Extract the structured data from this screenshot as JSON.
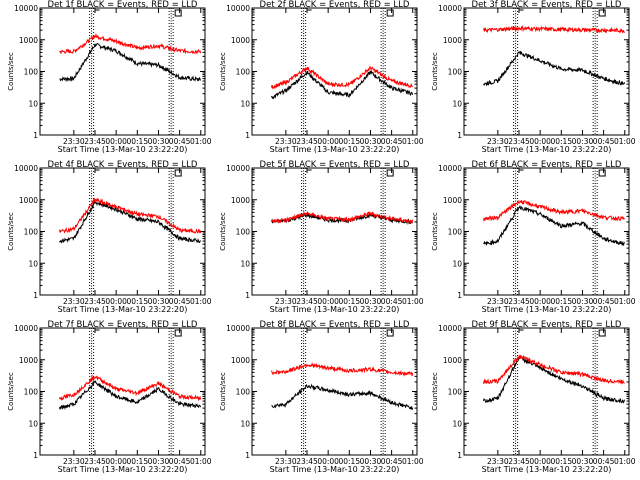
{
  "chart_data": [
    {
      "type": "line",
      "title": "Det 1f BLACK = Events, RED = LLD",
      "xlabel": "Start Time (13-Mar-10 23:22:20)",
      "ylabel": "Counts/sec",
      "xticks": [
        "23:30",
        "23:45",
        "00:00",
        "00:15",
        "00:30",
        "00:45",
        "01:00"
      ],
      "yticks": [
        "1",
        "10",
        "100",
        "1000",
        "10000"
      ],
      "yscale": "log",
      "ylim": [
        1,
        10000
      ],
      "x": [
        23.33,
        23.5,
        23.75,
        24.0,
        24.25,
        24.5,
        24.75,
        25.0
      ],
      "series": [
        {
          "name": "BLACK = Events",
          "color": "#000000",
          "values": [
            58,
            60,
            700,
            450,
            180,
            160,
            65,
            55
          ]
        },
        {
          "name": "RED = LLD",
          "color": "#ff0000",
          "values": [
            420,
            430,
            1300,
            900,
            550,
            650,
            450,
            420
          ]
        }
      ]
    },
    {
      "type": "line",
      "title": "Det 2f BLACK = Events, RED = LLD",
      "xlabel": "Start Time (13-Mar-10 23:22:20)",
      "ylabel": "Counts/sec",
      "xticks": [
        "23:30",
        "23:45",
        "00:00",
        "00:15",
        "00:30",
        "00:45",
        "01:00"
      ],
      "yticks": [
        "1",
        "10",
        "100",
        "1000",
        "10000"
      ],
      "yscale": "log",
      "ylim": [
        1,
        10000
      ],
      "x": [
        23.33,
        23.5,
        23.75,
        24.0,
        24.25,
        24.5,
        24.75,
        25.0
      ],
      "series": [
        {
          "name": "BLACK = Events",
          "color": "#000000",
          "values": [
            15,
            25,
            95,
            22,
            18,
            95,
            30,
            20
          ]
        },
        {
          "name": "RED = LLD",
          "color": "#ff0000",
          "values": [
            32,
            45,
            130,
            40,
            38,
            130,
            50,
            35
          ]
        }
      ]
    },
    {
      "type": "line",
      "title": "Det 3f BLACK = Events, RED = LLD",
      "xlabel": "Start Time (13-Mar-10 23:22:20)",
      "ylabel": "Counts/sec",
      "xticks": [
        "23:30",
        "23:45",
        "00:00",
        "00:15",
        "00:30",
        "00:45",
        "01:00"
      ],
      "yticks": [
        "1",
        "10",
        "100",
        "1000",
        "10000"
      ],
      "yscale": "log",
      "ylim": [
        1,
        10000
      ],
      "x": [
        23.33,
        23.5,
        23.75,
        24.0,
        24.25,
        24.5,
        24.75,
        25.0
      ],
      "series": [
        {
          "name": "BLACK = Events",
          "color": "#000000",
          "values": [
            40,
            50,
            400,
            220,
            120,
            110,
            60,
            40
          ]
        },
        {
          "name": "RED = LLD",
          "color": "#ff0000",
          "values": [
            2000,
            2100,
            2300,
            2200,
            2100,
            2050,
            2000,
            1950
          ]
        }
      ]
    },
    {
      "type": "line",
      "title": "Det 4f BLACK = Events, RED = LLD",
      "xlabel": "Start Time (13-Mar-10 23:22:20)",
      "ylabel": "Counts/sec",
      "xticks": [
        "23:30",
        "23:45",
        "00:00",
        "00:15",
        "00:30",
        "00:45",
        "01:00"
      ],
      "yticks": [
        "1",
        "10",
        "100",
        "1000",
        "10000"
      ],
      "yscale": "log",
      "ylim": [
        1,
        10000
      ],
      "x": [
        23.33,
        23.5,
        23.75,
        24.0,
        24.25,
        24.5,
        24.75,
        25.0
      ],
      "series": [
        {
          "name": "BLACK = Events",
          "color": "#000000",
          "values": [
            50,
            60,
            850,
            500,
            250,
            200,
            60,
            50
          ]
        },
        {
          "name": "RED = LLD",
          "color": "#ff0000",
          "values": [
            100,
            120,
            1000,
            600,
            350,
            300,
            110,
            100
          ]
        }
      ]
    },
    {
      "type": "line",
      "title": "Det 5f BLACK = Events, RED = LLD",
      "xlabel": "Start Time (13-Mar-10 23:22:20)",
      "ylabel": "Counts/sec",
      "xticks": [
        "23:30",
        "23:45",
        "00:00",
        "00:15",
        "00:30",
        "00:45",
        "01:00"
      ],
      "yticks": [
        "1",
        "10",
        "100",
        "1000",
        "10000"
      ],
      "yscale": "log",
      "ylim": [
        1,
        10000
      ],
      "x": [
        23.33,
        23.5,
        23.75,
        24.0,
        24.25,
        24.5,
        24.75,
        25.0
      ],
      "series": [
        {
          "name": "BLACK = Events",
          "color": "#000000",
          "values": [
            200,
            220,
            330,
            230,
            220,
            330,
            230,
            200
          ]
        },
        {
          "name": "RED = LLD",
          "color": "#ff0000",
          "values": [
            210,
            230,
            370,
            250,
            240,
            370,
            250,
            210
          ]
        }
      ]
    },
    {
      "type": "line",
      "title": "Det 6f BLACK = Events, RED = LLD",
      "xlabel": "Start Time (13-Mar-10 23:22:20)",
      "ylabel": "Counts/sec",
      "xticks": [
        "23:30",
        "23:45",
        "00:00",
        "00:15",
        "00:30",
        "00:45",
        "01:00"
      ],
      "yticks": [
        "1",
        "10",
        "100",
        "1000",
        "10000"
      ],
      "yscale": "log",
      "ylim": [
        1,
        10000
      ],
      "x": [
        23.33,
        23.5,
        23.75,
        24.0,
        24.25,
        24.5,
        24.75,
        25.0
      ],
      "series": [
        {
          "name": "BLACK = Events",
          "color": "#000000",
          "values": [
            40,
            50,
            600,
            350,
            150,
            180,
            60,
            40
          ]
        },
        {
          "name": "RED = LLD",
          "color": "#ff0000",
          "values": [
            250,
            280,
            900,
            600,
            400,
            450,
            280,
            250
          ]
        }
      ]
    },
    {
      "type": "line",
      "title": "Det 7f BLACK = Events, RED = LLD",
      "xlabel": "Start Time (13-Mar-10 23:22:20)",
      "ylabel": "Counts/sec",
      "xticks": [
        "23:30",
        "23:45",
        "00:00",
        "00:15",
        "00:30",
        "00:45",
        "01:00"
      ],
      "yticks": [
        "1",
        "10",
        "100",
        "1000",
        "10000"
      ],
      "yscale": "log",
      "ylim": [
        1,
        10000
      ],
      "x": [
        23.33,
        23.5,
        23.75,
        24.0,
        24.25,
        24.5,
        24.75,
        25.0
      ],
      "series": [
        {
          "name": "BLACK = Events",
          "color": "#000000",
          "values": [
            30,
            40,
            200,
            70,
            45,
            120,
            40,
            35
          ]
        },
        {
          "name": "RED = LLD",
          "color": "#ff0000",
          "values": [
            60,
            80,
            300,
            120,
            90,
            180,
            70,
            60
          ]
        }
      ]
    },
    {
      "type": "line",
      "title": "Det 8f BLACK = Events, RED = LLD",
      "xlabel": "Start Time (13-Mar-10 23:22:20)",
      "ylabel": "Counts/sec",
      "xticks": [
        "23:30",
        "23:45",
        "00:00",
        "00:15",
        "00:30",
        "00:45",
        "01:00"
      ],
      "yticks": [
        "1",
        "10",
        "100",
        "1000",
        "10000"
      ],
      "yscale": "log",
      "ylim": [
        1,
        10000
      ],
      "x": [
        23.33,
        23.5,
        23.75,
        24.0,
        24.25,
        24.5,
        24.75,
        25.0
      ],
      "series": [
        {
          "name": "BLACK = Events",
          "color": "#000000",
          "values": [
            35,
            40,
            150,
            110,
            80,
            90,
            45,
            30
          ]
        },
        {
          "name": "RED = LLD",
          "color": "#ff0000",
          "values": [
            400,
            420,
            700,
            550,
            450,
            500,
            400,
            350
          ]
        }
      ]
    },
    {
      "type": "line",
      "title": "Det 9f BLACK = Events, RED = LLD",
      "xlabel": "Start Time (13-Mar-10 23:22:20)",
      "ylabel": "Counts/sec",
      "xticks": [
        "23:30",
        "23:45",
        "00:00",
        "00:15",
        "00:30",
        "00:45",
        "01:00"
      ],
      "yticks": [
        "1",
        "10",
        "100",
        "1000",
        "10000"
      ],
      "yscale": "log",
      "ylim": [
        1,
        10000
      ],
      "x": [
        23.33,
        23.5,
        23.75,
        24.0,
        24.25,
        24.5,
        24.75,
        25.0
      ],
      "series": [
        {
          "name": "BLACK = Events",
          "color": "#000000",
          "values": [
            50,
            60,
            1200,
            550,
            250,
            150,
            60,
            50
          ]
        },
        {
          "name": "RED = LLD",
          "color": "#ff0000",
          "values": [
            200,
            210,
            1300,
            700,
            400,
            350,
            220,
            200
          ]
        }
      ]
    }
  ]
}
